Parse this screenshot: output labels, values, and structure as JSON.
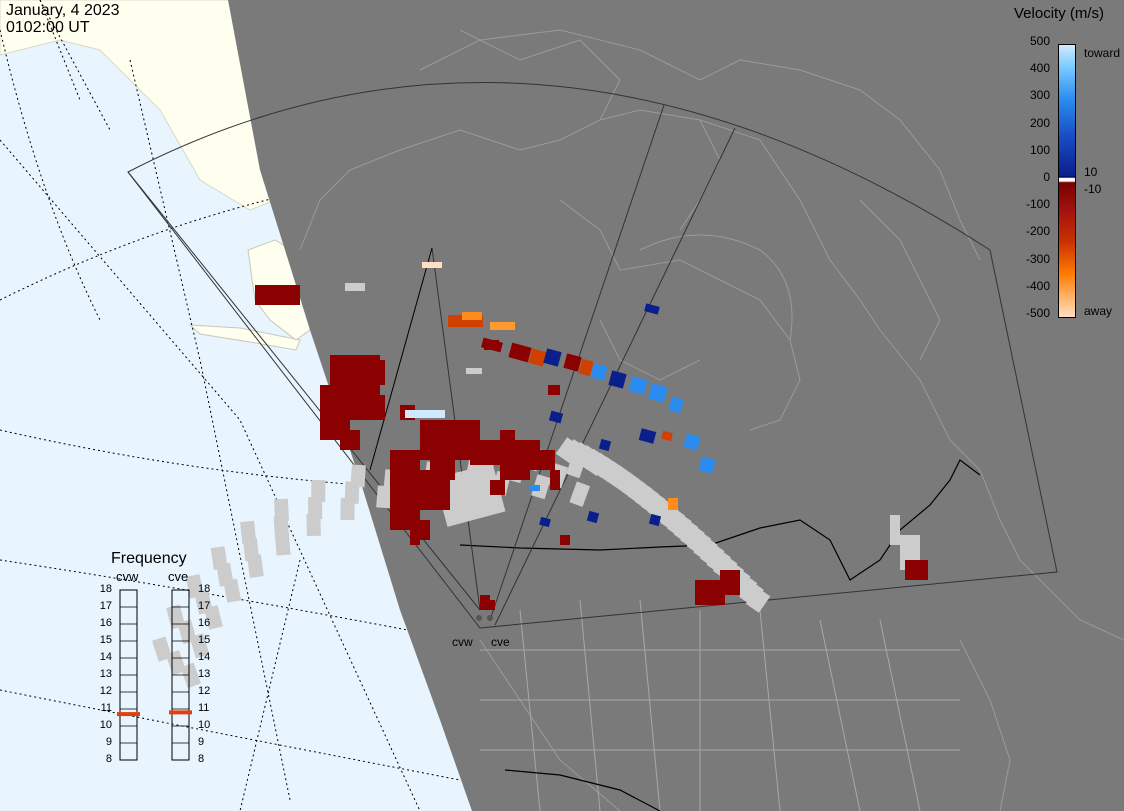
{
  "header": {
    "date": "January, 4 2023",
    "time": "0102:00 UT"
  },
  "velocity_legend": {
    "title": "Velocity (m/s)",
    "ticks": [
      "500",
      "400",
      "300",
      "200",
      "100",
      "0",
      "-100",
      "-200",
      "-300",
      "-400",
      "-500"
    ],
    "label_toward": "toward",
    "label_away": "away",
    "label_pos10": "10",
    "label_neg10": "-10",
    "colors": {
      "toward_max": "#cfeaff",
      "toward_mid": "#2a8cf0",
      "toward_low": "#0a1f8c",
      "away_low": "#8b0000",
      "away_mid": "#d04000",
      "away_max": "#ffe0c0",
      "ground_scatter": "#cccccc"
    }
  },
  "frequency_panel": {
    "title": "Frequency",
    "radars": [
      {
        "name": "cvw",
        "frequency_mhz": 10.7
      },
      {
        "name": "cve",
        "frequency_mhz": 10.8
      }
    ],
    "scale": [
      "18",
      "17",
      "16",
      "15",
      "14",
      "13",
      "12",
      "11",
      "10",
      "9",
      "8"
    ],
    "marker_color": "#e04010"
  },
  "map": {
    "land_color": "#fffff0",
    "ocean_color": "#e8f5ff",
    "night_color": "#7a7a7a",
    "radar_sites": [
      {
        "name": "cvw"
      },
      {
        "name": "cve"
      }
    ]
  }
}
